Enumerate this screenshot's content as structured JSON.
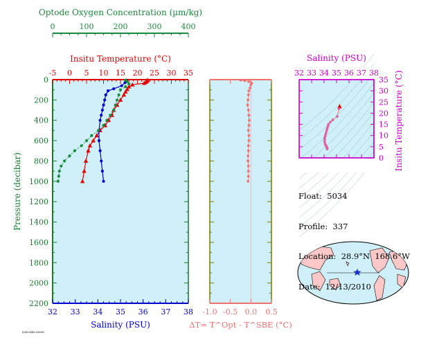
{
  "colors": {
    "panel_bg": "#cff0f8",
    "oxygen": "#1a8a3c",
    "temperature": "#e00000",
    "salinity": "#0000cc",
    "delta": "#f07070",
    "salinity_panel_axis": "#cc00cc",
    "pressure_axis": "#1a7a30",
    "map_land": "#ffc8c8",
    "map_ocean": "#cff0f8"
  },
  "info": {
    "float_label": "Float:",
    "float_value": "5034",
    "profile_label": "Profile:",
    "profile_value": "337",
    "location_label": "Location:",
    "location_value": "28.9°N  168.6°W",
    "date_label": "Date:",
    "date_value": "12/13/2010"
  },
  "footer_code": "ISS0004M-05M05",
  "chart_data": [
    {
      "type": "line",
      "title": "",
      "y_axis": {
        "label": "Pressure (decibar)",
        "range": [
          2200,
          0
        ],
        "ticks": [
          0,
          200,
          400,
          600,
          800,
          1000,
          1200,
          1400,
          1600,
          1800,
          2000,
          2200
        ]
      },
      "x_axes": [
        {
          "name": "oxygen",
          "label": "Optode Oxygen Concentration (µm/kg)",
          "range": [
            0,
            400
          ],
          "ticks": [
            0,
            100,
            200,
            300,
            400
          ],
          "position": "top"
        },
        {
          "name": "temperature",
          "label": "Insitu Temperature (°C)",
          "range": [
            -5,
            35
          ],
          "ticks": [
            -5,
            0,
            5,
            10,
            15,
            20,
            25,
            30,
            35
          ],
          "position": "top"
        },
        {
          "name": "salinity",
          "label": "Salinity (PSU)",
          "range": [
            32,
            38
          ],
          "ticks": [
            32,
            33,
            34,
            35,
            36,
            37,
            38
          ],
          "position": "bottom"
        }
      ],
      "series": [
        {
          "axis": "temperature",
          "marker": "triangle",
          "points": [
            [
              23,
              5
            ],
            [
              22.8,
              15
            ],
            [
              22.5,
              25
            ],
            [
              22,
              35
            ],
            [
              18.5,
              50
            ],
            [
              17.5,
              70
            ],
            [
              17,
              95
            ],
            [
              16.5,
              120
            ],
            [
              16,
              150
            ],
            [
              15,
              200
            ],
            [
              14,
              250
            ],
            [
              13,
              300
            ],
            [
              12.5,
              350
            ],
            [
              11.5,
              400
            ],
            [
              10.5,
              450
            ],
            [
              9,
              500
            ],
            [
              8,
              550
            ],
            [
              7,
              600
            ],
            [
              6,
              650
            ],
            [
              5.5,
              700
            ],
            [
              4.8,
              800
            ],
            [
              4.3,
              900
            ],
            [
              3.8,
              1000
            ]
          ]
        },
        {
          "axis": "salinity",
          "marker": "dot",
          "points": [
            [
              35.25,
              5
            ],
            [
              35.2,
              30
            ],
            [
              35.05,
              60
            ],
            [
              34.7,
              90
            ],
            [
              34.45,
              110
            ],
            [
              34.35,
              150
            ],
            [
              34.3,
              200
            ],
            [
              34.25,
              250
            ],
            [
              34.2,
              300
            ],
            [
              34.15,
              350
            ],
            [
              34.1,
              400
            ],
            [
              34.05,
              500
            ],
            [
              34.05,
              600
            ],
            [
              34.1,
              700
            ],
            [
              34.15,
              800
            ],
            [
              34.2,
              900
            ],
            [
              34.25,
              1000
            ]
          ]
        },
        {
          "axis": "oxygen",
          "marker": "dot",
          "points": [
            [
              215,
              5
            ],
            [
              220,
              20
            ],
            [
              225,
              40
            ],
            [
              215,
              70
            ],
            [
              200,
              100
            ],
            [
              195,
              150
            ],
            [
              190,
              200
            ],
            [
              185,
              250
            ],
            [
              180,
              300
            ],
            [
              170,
              350
            ],
            [
              160,
              400
            ],
            [
              150,
              450
            ],
            [
              135,
              500
            ],
            [
              115,
              550
            ],
            [
              100,
              600
            ],
            [
              85,
              650
            ],
            [
              65,
              700
            ],
            [
              50,
              750
            ],
            [
              35,
              800
            ],
            [
              25,
              850
            ],
            [
              20,
              900
            ],
            [
              18,
              950
            ],
            [
              16,
              1000
            ]
          ]
        }
      ]
    },
    {
      "type": "scatter",
      "title": "",
      "xlabel": "ΔT= T^Opt - T^SBE (°C)",
      "x_tick_labels": [
        "-1.0",
        "-0.5",
        "0.0",
        "0.5"
      ],
      "xlim": [
        -1.0,
        0.5
      ],
      "ylim": [
        2200,
        0
      ],
      "points": [
        [
          -0.25,
          5
        ],
        [
          -0.15,
          10
        ],
        [
          -0.05,
          20
        ],
        [
          0.02,
          35
        ],
        [
          0.0,
          50
        ],
        [
          -0.02,
          80
        ],
        [
          -0.05,
          110
        ],
        [
          -0.06,
          150
        ],
        [
          -0.07,
          200
        ],
        [
          -0.08,
          250
        ],
        [
          -0.06,
          300
        ],
        [
          -0.05,
          350
        ],
        [
          -0.04,
          400
        ],
        [
          -0.05,
          450
        ],
        [
          -0.06,
          500
        ],
        [
          -0.05,
          550
        ],
        [
          -0.05,
          600
        ],
        [
          -0.06,
          650
        ],
        [
          -0.06,
          700
        ],
        [
          -0.07,
          750
        ],
        [
          -0.07,
          800
        ],
        [
          -0.06,
          850
        ],
        [
          -0.06,
          900
        ],
        [
          -0.06,
          950
        ],
        [
          -0.07,
          1000
        ]
      ]
    },
    {
      "type": "scatter",
      "title": "",
      "xlabel": "Salinity (PSU)",
      "ylabel": "Insitu Temperature (°C)",
      "x_tick_labels": [
        "32",
        "33",
        "34",
        "35",
        "36",
        "37",
        "38"
      ],
      "y_tick_labels": [
        "0",
        "5",
        "10",
        "15",
        "20",
        "25",
        "30",
        "35"
      ],
      "xlim": [
        32,
        38
      ],
      "ylim": [
        0,
        35
      ],
      "points": [
        [
          35.25,
          23
        ],
        [
          35.2,
          22
        ],
        [
          35.05,
          18.5
        ],
        [
          34.7,
          17
        ],
        [
          34.5,
          16
        ],
        [
          34.35,
          15
        ],
        [
          34.3,
          14
        ],
        [
          34.25,
          13
        ],
        [
          34.2,
          12
        ],
        [
          34.15,
          11
        ],
        [
          34.1,
          10
        ],
        [
          34.05,
          9
        ],
        [
          34.05,
          8
        ],
        [
          34.05,
          7
        ],
        [
          34.1,
          6
        ],
        [
          34.15,
          5.5
        ],
        [
          34.2,
          5
        ],
        [
          34.25,
          4.5
        ],
        [
          34.25,
          4
        ]
      ]
    }
  ]
}
